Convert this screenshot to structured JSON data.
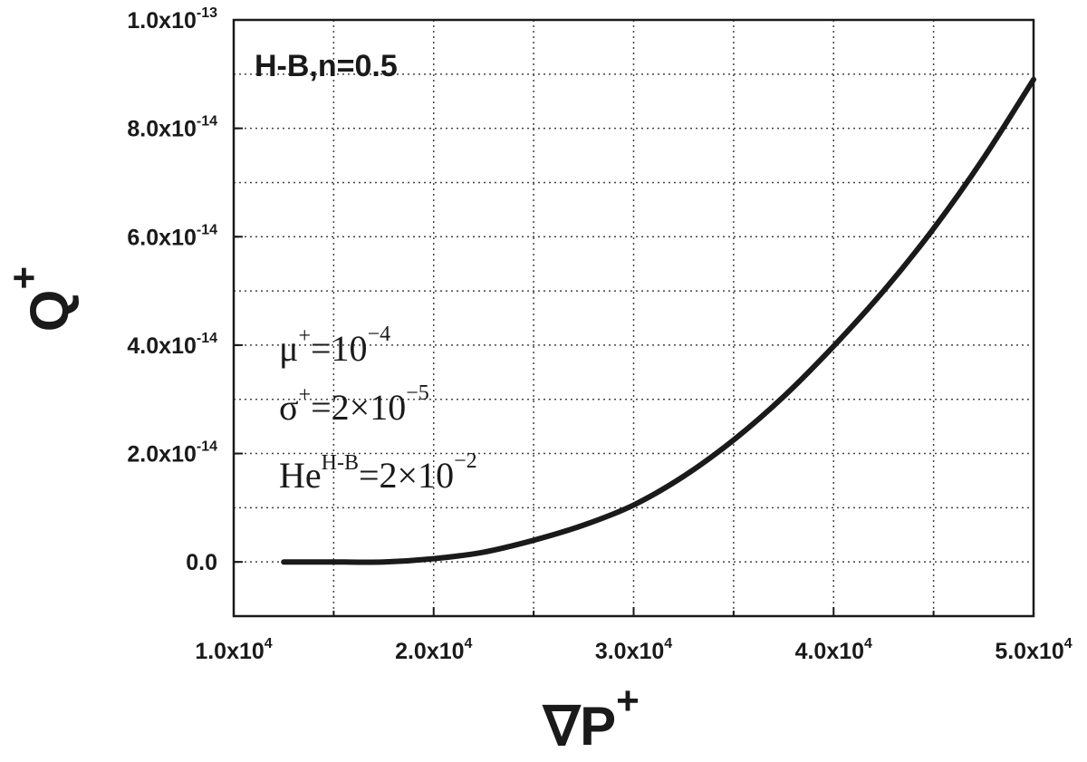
{
  "chart_data": {
    "type": "line",
    "title": "H-B,n=0.5",
    "xlabel": {
      "base": "∇P",
      "sup": "+"
    },
    "ylabel": {
      "base": "Q",
      "sup": "+"
    },
    "xlim": [
      10000,
      50000
    ],
    "ylim": [
      -1e-14,
      1e-13
    ],
    "grid": true,
    "grid_style": "dotted",
    "x_ticks": [
      {
        "value": 10000,
        "mantissa": "1.0x10",
        "exp": "4"
      },
      {
        "value": 20000,
        "mantissa": "2.0x10",
        "exp": "4"
      },
      {
        "value": 30000,
        "mantissa": "3.0x10",
        "exp": "4"
      },
      {
        "value": 40000,
        "mantissa": "4.0x10",
        "exp": "4"
      },
      {
        "value": 50000,
        "mantissa": "5.0x10",
        "exp": "4"
      }
    ],
    "y_ticks": [
      {
        "value": 0,
        "mantissa": "0.0",
        "exp": ""
      },
      {
        "value": 2e-14,
        "mantissa": "2.0x10",
        "exp": "-14"
      },
      {
        "value": 4e-14,
        "mantissa": "4.0x10",
        "exp": "-14"
      },
      {
        "value": 6e-14,
        "mantissa": "6.0x10",
        "exp": "-14"
      },
      {
        "value": 8e-14,
        "mantissa": "8.0x10",
        "exp": "-14"
      },
      {
        "value": 1e-13,
        "mantissa": "1.0x10",
        "exp": "-13"
      }
    ],
    "annotations": [
      {
        "base": "μ",
        "sup": "+",
        "rest": "=10",
        "rest_sup": "−4"
      },
      {
        "base": "σ",
        "sup": "+",
        "rest": "=2×10",
        "rest_sup": "−5"
      },
      {
        "base": "He",
        "sup": "H-B",
        "rest": "=2×10",
        "rest_sup": "−2"
      }
    ],
    "series": [
      {
        "color": "#1a1a1a",
        "x": [
          12500,
          15000,
          17500,
          20000,
          22500,
          25000,
          27500,
          30000,
          32500,
          35000,
          37500,
          40000,
          42500,
          45000,
          47500,
          50000
        ],
        "y": [
          0,
          0,
          0,
          6e-16,
          1.8e-15,
          4e-15,
          6.8e-15,
          1.05e-14,
          1.58e-14,
          2.25e-14,
          3.05e-14,
          3.98e-14,
          5e-14,
          6.15e-14,
          7.45e-14,
          8.9e-14
        ]
      }
    ]
  }
}
